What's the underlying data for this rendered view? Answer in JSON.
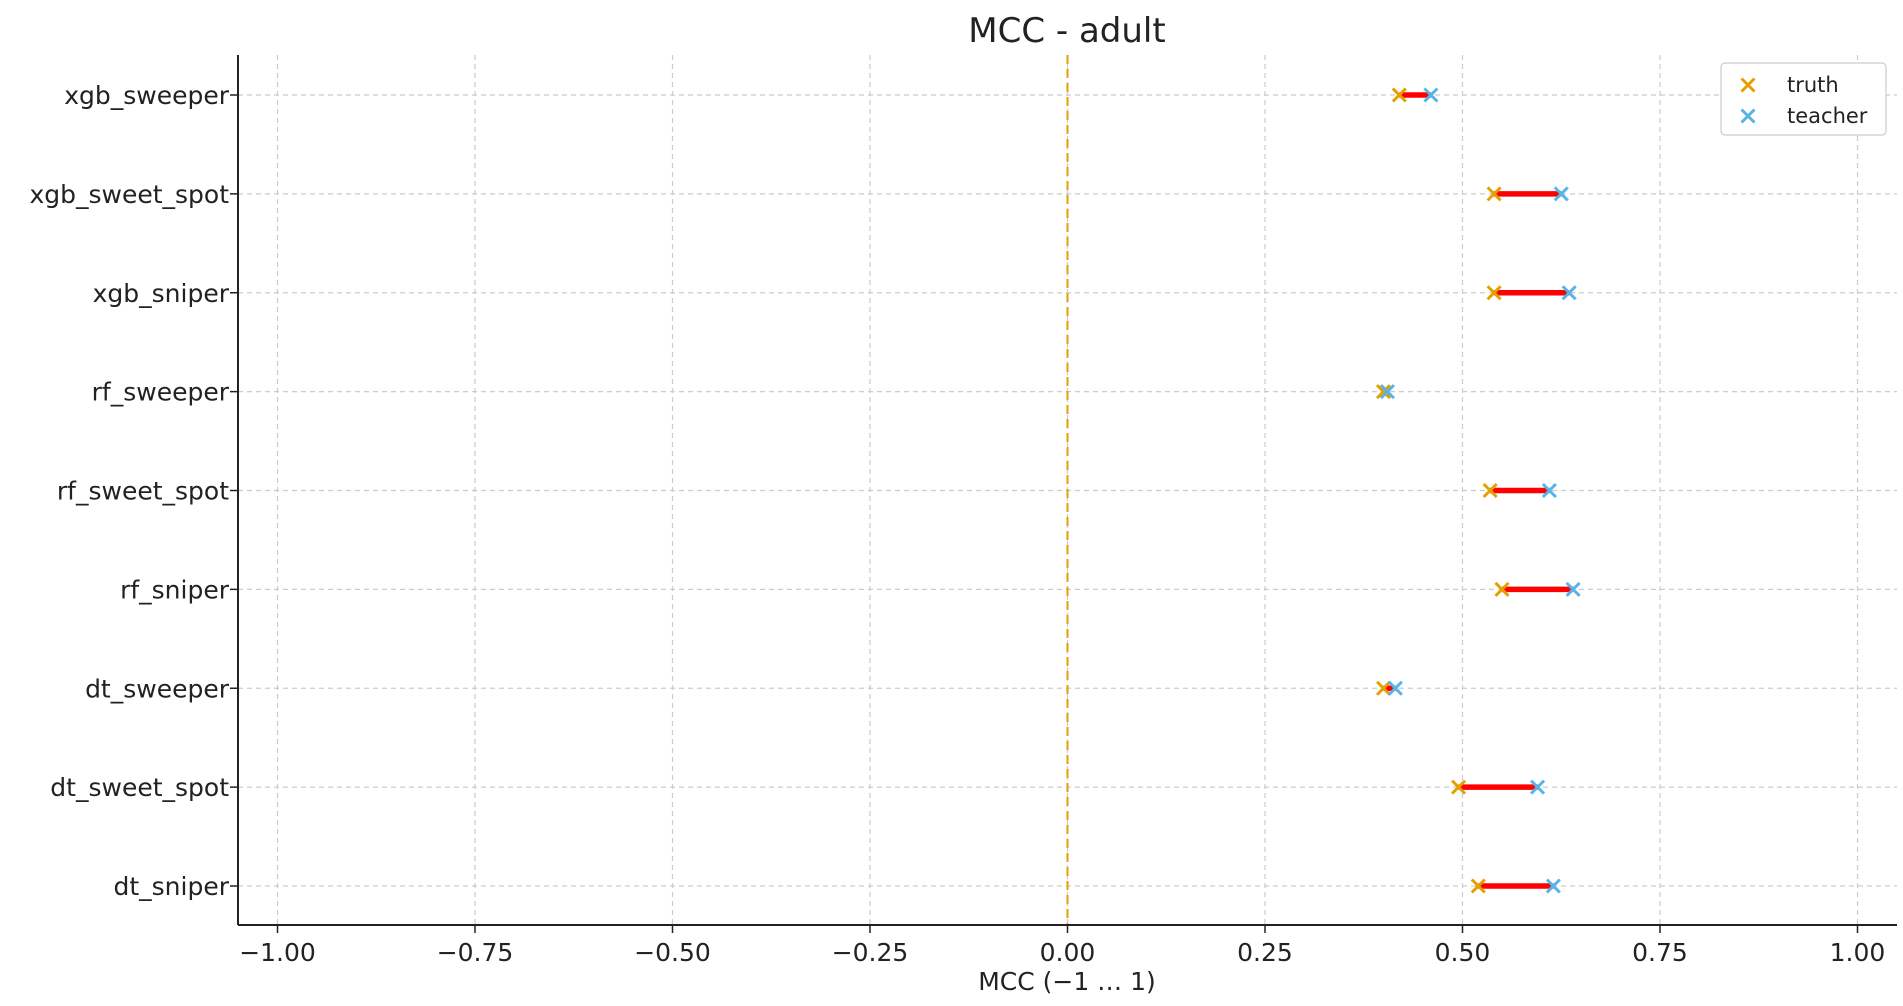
{
  "chart_data": {
    "type": "scatter",
    "title": "MCC - adult",
    "xlabel": "MCC (−1 … 1)",
    "ylabel": "",
    "xlim": [
      -1.05,
      1.05
    ],
    "x_ticks": [
      -1.0,
      -0.75,
      -0.5,
      -0.25,
      0.0,
      0.25,
      0.5,
      0.75,
      1.0
    ],
    "x_tick_labels": [
      "−1.00",
      "−0.75",
      "−0.50",
      "−0.25",
      "0.00",
      "0.25",
      "0.50",
      "0.75",
      "1.00"
    ],
    "categories": [
      "xgb_sweeper",
      "xgb_sweet_spot",
      "xgb_sniper",
      "rf_sweeper",
      "rf_sweet_spot",
      "rf_sniper",
      "dt_sweeper",
      "dt_sweet_spot",
      "dt_sniper"
    ],
    "series": [
      {
        "name": "truth",
        "color": "#E69F00",
        "marker": "x",
        "values": [
          0.42,
          0.54,
          0.54,
          0.4,
          0.535,
          0.55,
          0.4,
          0.495,
          0.52
        ]
      },
      {
        "name": "teacher",
        "color": "#56B4E9",
        "marker": "x",
        "values": [
          0.46,
          0.625,
          0.635,
          0.405,
          0.61,
          0.64,
          0.415,
          0.595,
          0.615
        ]
      }
    ],
    "gap_line_color": "#FF0000",
    "reference_line": {
      "x": 0.0,
      "color": "#E69F00",
      "style": "dashed"
    },
    "grid": true,
    "legend": "top-right"
  }
}
